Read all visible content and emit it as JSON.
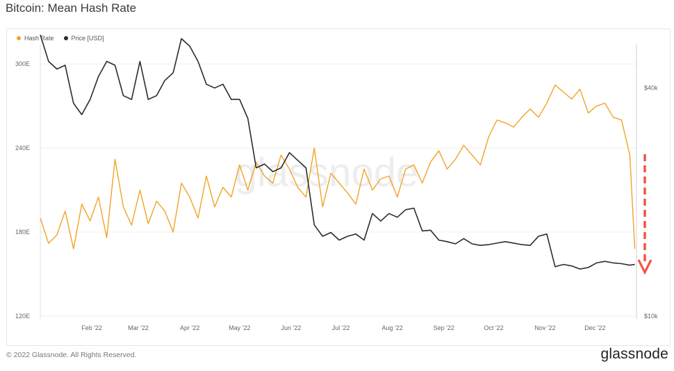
{
  "page": {
    "title": "Bitcoin: Mean Hash Rate",
    "footer": "© 2022 Glassnode. All Rights Reserved.",
    "brand": "glassnode",
    "watermark": "glassnode"
  },
  "chart_data": {
    "type": "line",
    "title": "Bitcoin: Mean Hash Rate",
    "legend": {
      "position": "top-left",
      "entries": [
        "Hash Rate",
        "Price [USD]"
      ]
    },
    "colors": {
      "hash_rate": "#F0A327",
      "price": "#2B2B2B",
      "arrow": "#F05545",
      "grid": "#EFEFEF"
    },
    "x_ticks": [
      "Feb '22",
      "Mar '22",
      "Apr '22",
      "May '22",
      "Jun '22",
      "Jul '22",
      "Aug '22",
      "Sep '22",
      "Oct '22",
      "Nov '22",
      "Dec '22"
    ],
    "y_left": {
      "ticks": [
        "120E",
        "180E",
        "240E",
        "300E"
      ],
      "range": [
        120,
        310
      ]
    },
    "y_right": {
      "ticks": [
        "$10k",
        "$40k"
      ],
      "range": [
        10000,
        45000
      ]
    },
    "grid": true,
    "series": [
      {
        "name": "Hash Rate",
        "axis": "left",
        "x": [
          "2022-01-01",
          "2022-01-06",
          "2022-01-11",
          "2022-01-16",
          "2022-01-21",
          "2022-01-26",
          "2022-01-31",
          "2022-02-05",
          "2022-02-10",
          "2022-02-15",
          "2022-02-20",
          "2022-02-25",
          "2022-03-02",
          "2022-03-07",
          "2022-03-12",
          "2022-03-17",
          "2022-03-22",
          "2022-03-27",
          "2022-04-01",
          "2022-04-06",
          "2022-04-11",
          "2022-04-16",
          "2022-04-21",
          "2022-04-26",
          "2022-05-01",
          "2022-05-06",
          "2022-05-11",
          "2022-05-16",
          "2022-05-21",
          "2022-05-26",
          "2022-05-31",
          "2022-06-05",
          "2022-06-10",
          "2022-06-15",
          "2022-06-20",
          "2022-06-25",
          "2022-06-30",
          "2022-07-05",
          "2022-07-10",
          "2022-07-15",
          "2022-07-20",
          "2022-07-25",
          "2022-07-30",
          "2022-08-04",
          "2022-08-09",
          "2022-08-14",
          "2022-08-19",
          "2022-08-24",
          "2022-08-29",
          "2022-09-03",
          "2022-09-08",
          "2022-09-13",
          "2022-09-18",
          "2022-09-23",
          "2022-09-28",
          "2022-10-03",
          "2022-10-08",
          "2022-10-13",
          "2022-10-18",
          "2022-10-23",
          "2022-10-28",
          "2022-11-02",
          "2022-11-07",
          "2022-11-12",
          "2022-11-17",
          "2022-11-22",
          "2022-11-27",
          "2022-12-02",
          "2022-12-07",
          "2022-12-12",
          "2022-12-17",
          "2022-12-22",
          "2022-12-25"
        ],
        "values": [
          190,
          172,
          178,
          195,
          168,
          200,
          188,
          205,
          176,
          232,
          198,
          185,
          210,
          186,
          202,
          195,
          180,
          215,
          205,
          190,
          220,
          198,
          212,
          205,
          228,
          210,
          230,
          220,
          215,
          235,
          225,
          212,
          205,
          240,
          198,
          222,
          215,
          208,
          200,
          225,
          210,
          218,
          220,
          205,
          225,
          228,
          215,
          230,
          238,
          225,
          232,
          242,
          235,
          228,
          248,
          260,
          258,
          255,
          262,
          268,
          262,
          272,
          285,
          280,
          275,
          282,
          265,
          270,
          272,
          262,
          260,
          235,
          168
        ]
      },
      {
        "name": "Price [USD]",
        "axis": "right",
        "x": [
          "2022-01-01",
          "2022-01-06",
          "2022-01-11",
          "2022-01-16",
          "2022-01-21",
          "2022-01-26",
          "2022-01-31",
          "2022-02-05",
          "2022-02-10",
          "2022-02-15",
          "2022-02-20",
          "2022-02-25",
          "2022-03-02",
          "2022-03-07",
          "2022-03-12",
          "2022-03-17",
          "2022-03-22",
          "2022-03-27",
          "2022-04-01",
          "2022-04-06",
          "2022-04-11",
          "2022-04-16",
          "2022-04-21",
          "2022-04-26",
          "2022-05-01",
          "2022-05-06",
          "2022-05-11",
          "2022-05-16",
          "2022-05-21",
          "2022-05-26",
          "2022-05-31",
          "2022-06-05",
          "2022-06-10",
          "2022-06-15",
          "2022-06-20",
          "2022-06-25",
          "2022-06-30",
          "2022-07-05",
          "2022-07-10",
          "2022-07-15",
          "2022-07-20",
          "2022-07-25",
          "2022-07-30",
          "2022-08-04",
          "2022-08-09",
          "2022-08-14",
          "2022-08-19",
          "2022-08-24",
          "2022-08-29",
          "2022-09-03",
          "2022-09-08",
          "2022-09-13",
          "2022-09-18",
          "2022-09-23",
          "2022-09-28",
          "2022-10-03",
          "2022-10-08",
          "2022-10-13",
          "2022-10-18",
          "2022-10-23",
          "2022-10-28",
          "2022-11-02",
          "2022-11-07",
          "2022-11-12",
          "2022-11-17",
          "2022-11-22",
          "2022-11-27",
          "2022-12-02",
          "2022-12-07",
          "2022-12-12",
          "2022-12-17",
          "2022-12-22",
          "2022-12-25"
        ],
        "values": [
          47000,
          43500,
          42500,
          43000,
          38000,
          36500,
          38500,
          41500,
          43500,
          43000,
          39000,
          38500,
          43500,
          38500,
          39000,
          41000,
          42000,
          46500,
          45500,
          43500,
          40500,
          40000,
          40500,
          38500,
          38500,
          36000,
          29500,
          30000,
          29000,
          29500,
          31500,
          30500,
          29500,
          22000,
          20500,
          21000,
          20000,
          20500,
          20800,
          20000,
          23500,
          22500,
          23500,
          23000,
          24000,
          24200,
          21200,
          21300,
          20000,
          19800,
          19500,
          20200,
          19500,
          19300,
          19400,
          19600,
          19800,
          19600,
          19400,
          19300,
          20500,
          20800,
          16500,
          16800,
          16600,
          16200,
          16400,
          17000,
          17200,
          17000,
          16900,
          16700,
          16800
        ]
      }
    ]
  }
}
